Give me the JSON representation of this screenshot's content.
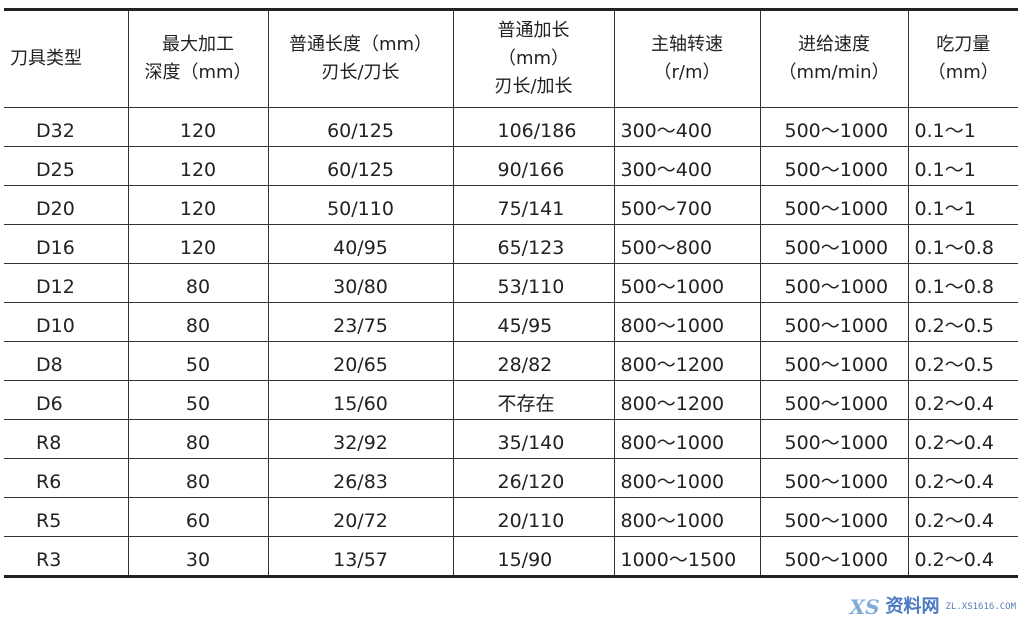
{
  "table": {
    "headers": [
      [
        "刀具类型"
      ],
      [
        "最大加工",
        "深度（mm）"
      ],
      [
        "普通长度（mm）",
        "刃长/刀长"
      ],
      [
        "普通加长",
        "（mm）",
        "刃长/加长"
      ],
      [
        "主轴转速",
        "（r/m）"
      ],
      [
        "进给速度",
        "（mm/min）"
      ],
      [
        "吃刀量",
        "（mm）"
      ]
    ],
    "rows": [
      [
        "D32",
        "120",
        "60/125",
        "106/186",
        "300～400",
        "500～1000",
        "0.1～1"
      ],
      [
        "D25",
        "120",
        "60/125",
        "90/166",
        "300～400",
        "500～1000",
        "0.1～1"
      ],
      [
        "D20",
        "120",
        "50/110",
        "75/141",
        "500～700",
        "500～1000",
        "0.1～1"
      ],
      [
        "D16",
        "120",
        "40/95",
        "65/123",
        "500～800",
        "500～1000",
        "0.1～0.8"
      ],
      [
        "D12",
        "80",
        "30/80",
        "53/110",
        "500～1000",
        "500～1000",
        "0.1～0.8"
      ],
      [
        "D10",
        "80",
        "23/75",
        "45/95",
        "800～1000",
        "500～1000",
        "0.2～0.5"
      ],
      [
        "D8",
        "50",
        "20/65",
        "28/82",
        "800～1200",
        "500～1000",
        "0.2～0.5"
      ],
      [
        "D6",
        "50",
        "15/60",
        "不存在",
        "800～1200",
        "500～1000",
        "0.2～0.4"
      ],
      [
        "R8",
        "80",
        "32/92",
        "35/140",
        "800～1000",
        "500～1000",
        "0.2～0.4"
      ],
      [
        "R6",
        "80",
        "26/83",
        "26/120",
        "800～1000",
        "500～1000",
        "0.2～0.4"
      ],
      [
        "R5",
        "60",
        "20/72",
        "20/110",
        "800～1000",
        "500～1000",
        "0.2～0.4"
      ],
      [
        "R3",
        "30",
        "13/57",
        "15/90",
        "1000～1500",
        "500～1000",
        "0.2～0.4"
      ]
    ]
  },
  "watermark": {
    "logo": "XS",
    "text": "资料网",
    "url": "ZL.XS1616.COM"
  }
}
